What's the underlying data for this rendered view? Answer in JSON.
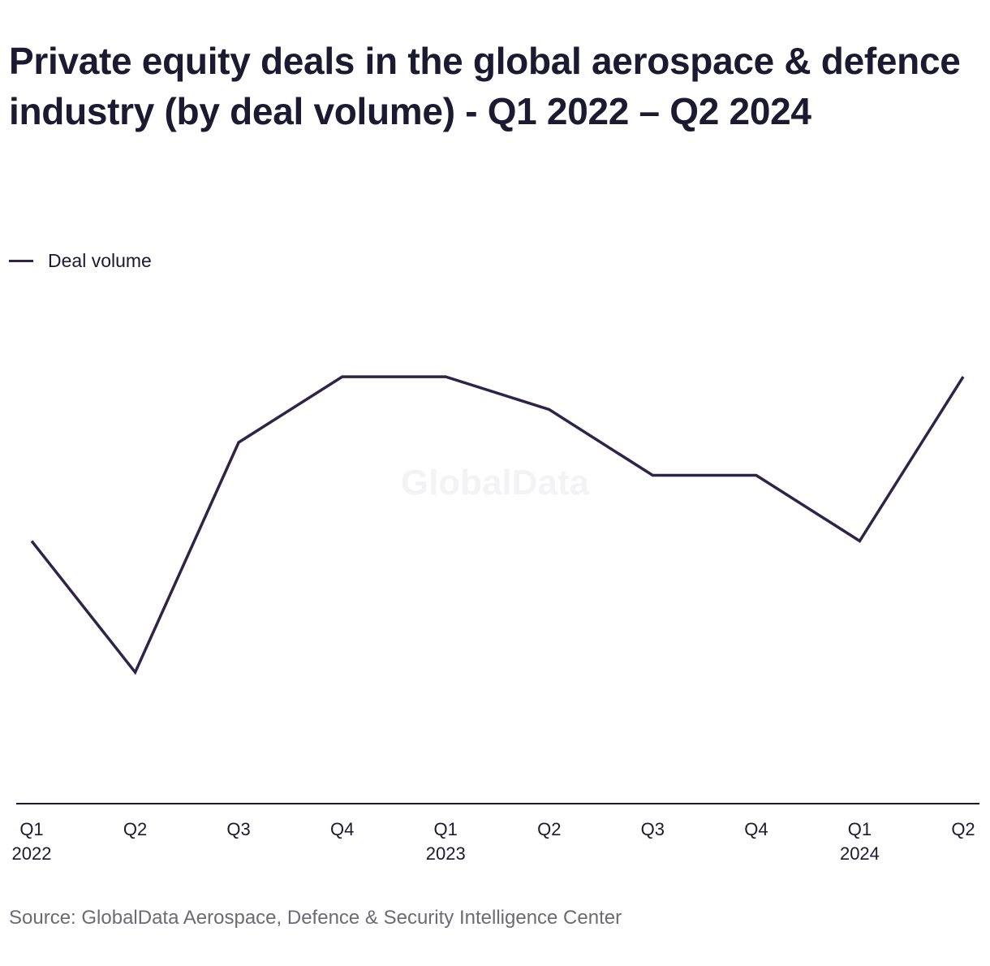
{
  "title": "Private equity deals in the global aerospace & defence industry (by deal volume) - Q1 2022 – Q2 2024",
  "source": "Source: GlobalData Aerospace, Defence & Security Intelligence Center",
  "watermark": "GlobalData",
  "colors": {
    "line": "#2e2447",
    "axis": "#1b1a30",
    "watermark": "#f3f3f5"
  },
  "chart_data": {
    "type": "line",
    "title": "Private equity deals in the global aerospace & defence industry (by deal volume) - Q1 2022 – Q2 2024",
    "xlabel": "",
    "ylabel": "",
    "legend_position": "top-left",
    "grid": false,
    "categories": [
      {
        "quarter": "Q1",
        "year": "2022"
      },
      {
        "quarter": "Q2",
        "year": ""
      },
      {
        "quarter": "Q3",
        "year": ""
      },
      {
        "quarter": "Q4",
        "year": ""
      },
      {
        "quarter": "Q1",
        "year": "2023"
      },
      {
        "quarter": "Q2",
        "year": ""
      },
      {
        "quarter": "Q3",
        "year": ""
      },
      {
        "quarter": "Q4",
        "year": ""
      },
      {
        "quarter": "Q1",
        "year": "2024"
      },
      {
        "quarter": "Q2",
        "year": ""
      }
    ],
    "ylim": [
      0,
      22
    ],
    "series": [
      {
        "name": "Deal volume",
        "values": [
          8,
          4,
          11,
          13,
          13,
          12,
          10,
          10,
          8,
          13
        ]
      }
    ]
  }
}
